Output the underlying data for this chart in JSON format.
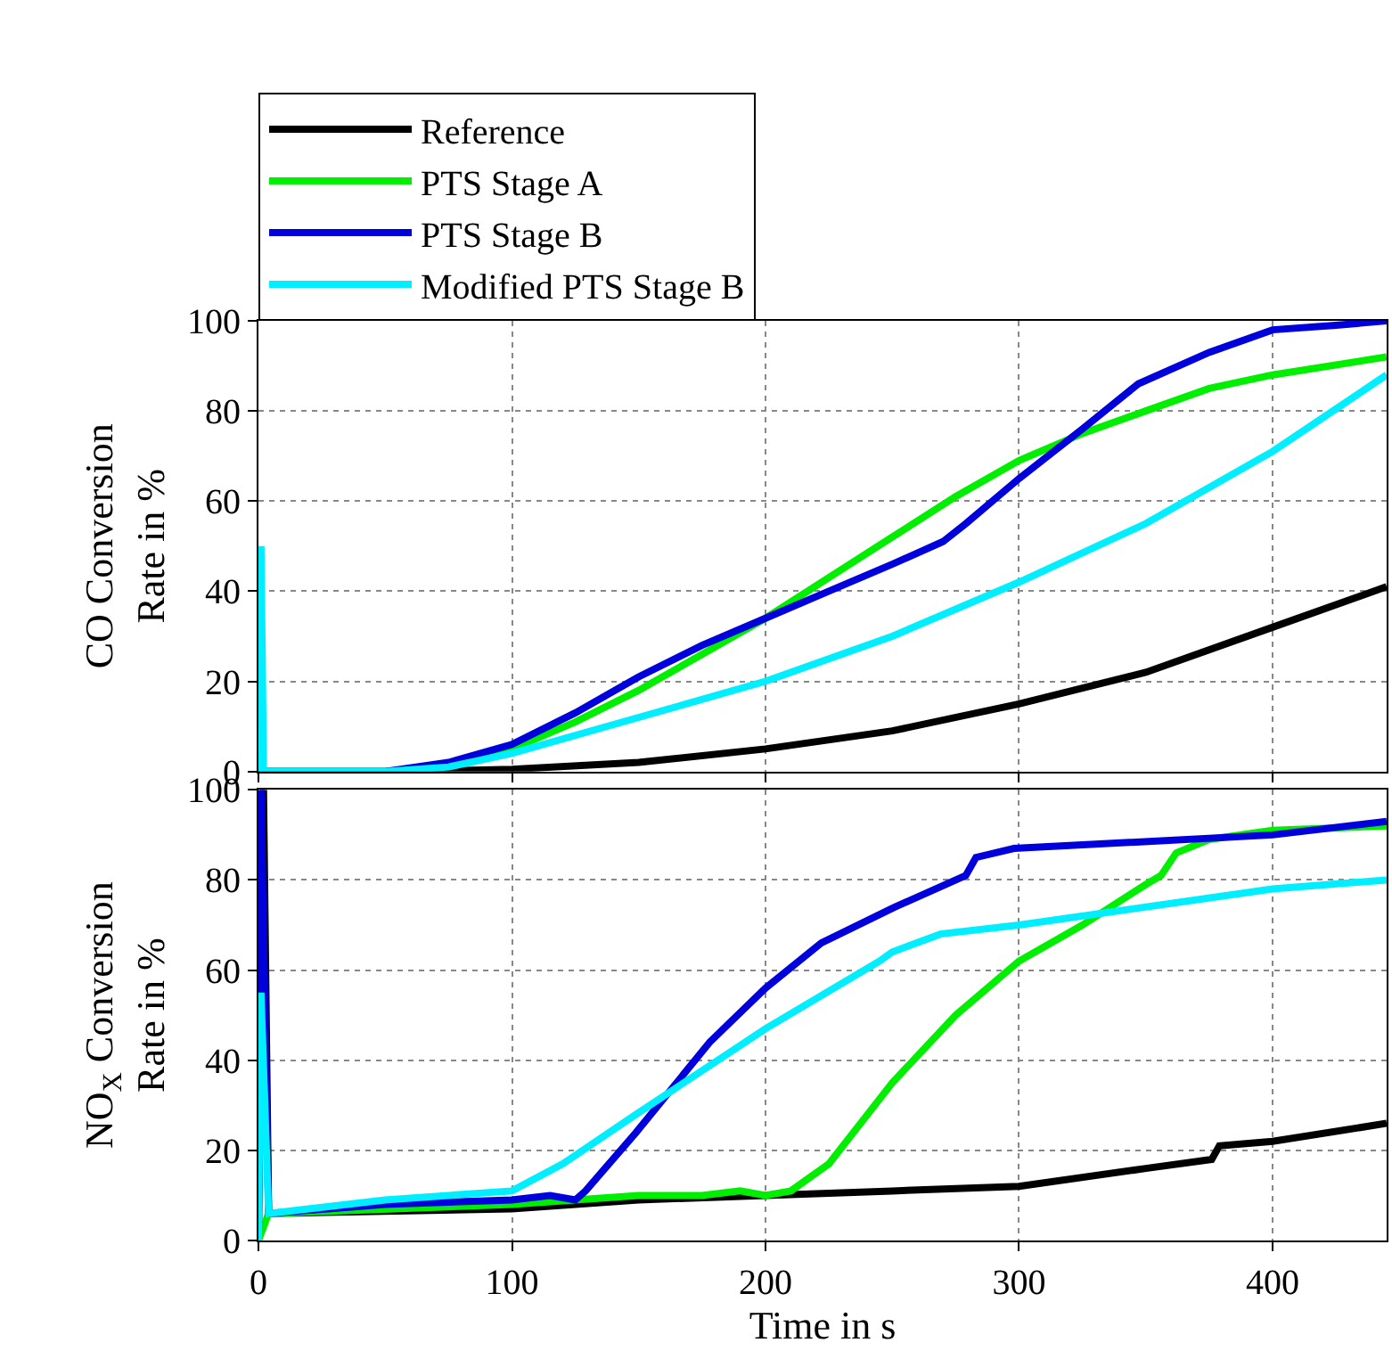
{
  "chart_data": [
    {
      "type": "line",
      "ylabel": "CO Conversion\nRate in %",
      "xlim": [
        0,
        445
      ],
      "xticks": [
        0,
        100,
        200,
        300,
        400
      ],
      "ylim": [
        0,
        100
      ],
      "yticks": [
        0,
        20,
        40,
        60,
        80,
        100
      ],
      "grid": true,
      "legend": "top left",
      "tick_labels": "y",
      "line_style": "solid",
      "marker": "none",
      "series": [
        {
          "name": "Reference",
          "color": "#000000",
          "x": [
            0,
            60,
            100,
            150,
            200,
            250,
            300,
            350,
            400,
            445
          ],
          "values": [
            0,
            0,
            0.5,
            2,
            5,
            9,
            15,
            22,
            32,
            41
          ]
        },
        {
          "name": "PTS Stage A",
          "color": "#00ee00",
          "x": [
            75,
            100,
            125,
            150,
            175,
            200,
            225,
            250,
            275,
            300,
            325,
            350,
            375,
            400,
            445
          ],
          "values": [
            1,
            5,
            11,
            18,
            26,
            34,
            43,
            52,
            61,
            69,
            75,
            80,
            85,
            88,
            92
          ]
        },
        {
          "name": "PTS Stage B",
          "color": "#0000dd",
          "x": [
            0,
            50,
            75,
            100,
            125,
            150,
            175,
            200,
            225,
            250,
            270,
            279,
            300,
            325,
            347,
            375,
            400,
            425,
            445
          ],
          "values": [
            0,
            0,
            2,
            6,
            13,
            21,
            28,
            34,
            40,
            46,
            51,
            55,
            65,
            76,
            86,
            93,
            98,
            99,
            100
          ]
        },
        {
          "name": "Modified PTS Stage B",
          "color": "#00eeff",
          "x": [
            0,
            1,
            2,
            50,
            75,
            100,
            150,
            200,
            250,
            300,
            350,
            400,
            445
          ],
          "values": [
            0,
            50,
            0,
            0,
            1,
            4,
            12,
            20,
            30,
            42,
            55,
            71,
            88
          ]
        }
      ]
    },
    {
      "type": "line",
      "ylabel": "NO$_{X}$ Conversion\nRate in %",
      "xlabel": "Time in s",
      "xlim": [
        0,
        445
      ],
      "xticks": [
        0,
        100,
        200,
        300,
        400
      ],
      "ylim": [
        0,
        100
      ],
      "yticks": [
        0,
        20,
        40,
        60,
        80,
        100
      ],
      "grid": true,
      "line_style": "solid",
      "marker": "none",
      "series": [
        {
          "color": "#000000",
          "x": [
            0,
            2,
            4,
            100,
            150,
            200,
            250,
            300,
            350,
            376,
            379,
            400,
            445
          ],
          "values": [
            0,
            100,
            6,
            7,
            9,
            10,
            11,
            12,
            16,
            18,
            21,
            22,
            26
          ]
        },
        {
          "color": "#00ee00",
          "x": [
            0,
            4,
            100,
            150,
            175,
            190,
            200,
            210,
            225,
            250,
            275,
            300,
            325,
            350,
            356,
            362,
            375,
            400,
            445
          ],
          "values": [
            0,
            6,
            8,
            10,
            10,
            11,
            10,
            11,
            17,
            35,
            50,
            62,
            70,
            79,
            81,
            86,
            89,
            91,
            92
          ]
        },
        {
          "color": "#0000dd",
          "x": [
            0,
            1,
            4,
            50,
            100,
            115,
            125,
            129,
            149,
            178,
            200,
            222,
            251,
            279,
            283,
            298,
            400,
            445
          ],
          "values": [
            0,
            100,
            6,
            8,
            9,
            10,
            9,
            11,
            24,
            44,
            56,
            66,
            74,
            81,
            85,
            87,
            90,
            93
          ]
        },
        {
          "color": "#00eeff",
          "x": [
            0,
            1,
            4,
            50,
            100,
            120,
            149,
            200,
            245,
            250,
            269,
            300,
            400,
            445
          ],
          "values": [
            0,
            55,
            6,
            9,
            11,
            17,
            28,
            47,
            62,
            64,
            68,
            70,
            78,
            80
          ]
        }
      ]
    }
  ]
}
